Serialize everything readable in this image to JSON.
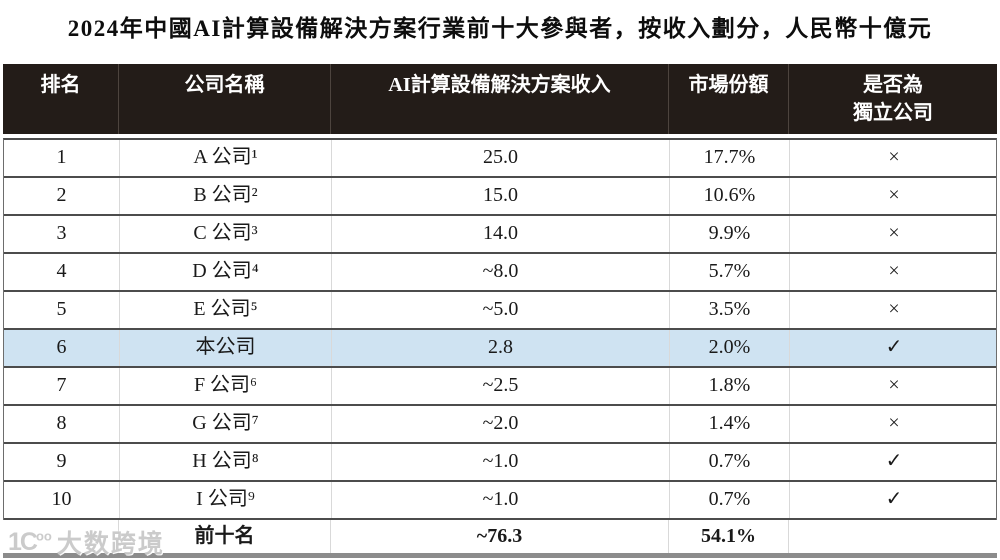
{
  "title": "2024年中國AI計算設備解決方案行業前十大參與者，按收入劃分，人民幣十億元",
  "colors": {
    "header_bg": "#231c18",
    "header_text": "#ffffff",
    "highlight_row_bg": "#cfe3f2",
    "row_border": "#4c4c4c",
    "column_border_light": "#d9d9d9",
    "bottom_band": "#8c8c8c",
    "watermark": "#c9c9c9"
  },
  "table": {
    "columns": [
      {
        "label": "排名"
      },
      {
        "label": "公司名稱"
      },
      {
        "label": "AI計算設備解決方案收入"
      },
      {
        "label": "市場份額"
      },
      {
        "label": "是否為\n獨立公司"
      }
    ],
    "rows": [
      {
        "rank": "1",
        "company": "A 公司¹",
        "revenue": "25.0",
        "share": "17.7%",
        "independent": "×",
        "highlight": false
      },
      {
        "rank": "2",
        "company": "B 公司²",
        "revenue": "15.0",
        "share": "10.6%",
        "independent": "×",
        "highlight": false
      },
      {
        "rank": "3",
        "company": "C 公司³",
        "revenue": "14.0",
        "share": "9.9%",
        "independent": "×",
        "highlight": false
      },
      {
        "rank": "4",
        "company": "D 公司⁴",
        "revenue": "~8.0",
        "share": "5.7%",
        "independent": "×",
        "highlight": false
      },
      {
        "rank": "5",
        "company": "E 公司⁵",
        "revenue": "~5.0",
        "share": "3.5%",
        "independent": "×",
        "highlight": false
      },
      {
        "rank": "6",
        "company": "本公司",
        "revenue": "2.8",
        "share": "2.0%",
        "independent": "✓",
        "highlight": true
      },
      {
        "rank": "7",
        "company": "F 公司⁶",
        "revenue": "~2.5",
        "share": "1.8%",
        "independent": "×",
        "highlight": false
      },
      {
        "rank": "8",
        "company": "G 公司⁷",
        "revenue": "~2.0",
        "share": "1.4%",
        "independent": "×",
        "highlight": false
      },
      {
        "rank": "9",
        "company": "H 公司⁸",
        "revenue": "~1.0",
        "share": "0.7%",
        "independent": "✓",
        "highlight": false
      },
      {
        "rank": "10",
        "company": "I 公司⁹",
        "revenue": "~1.0",
        "share": "0.7%",
        "independent": "✓",
        "highlight": false
      }
    ],
    "footer": {
      "rank": "",
      "company": "前十名",
      "revenue": "~76.3",
      "share": "54.1%",
      "independent": ""
    }
  },
  "watermark": {
    "logo_text": "1C",
    "logo_sup": "oo",
    "text": "大数跨境"
  }
}
